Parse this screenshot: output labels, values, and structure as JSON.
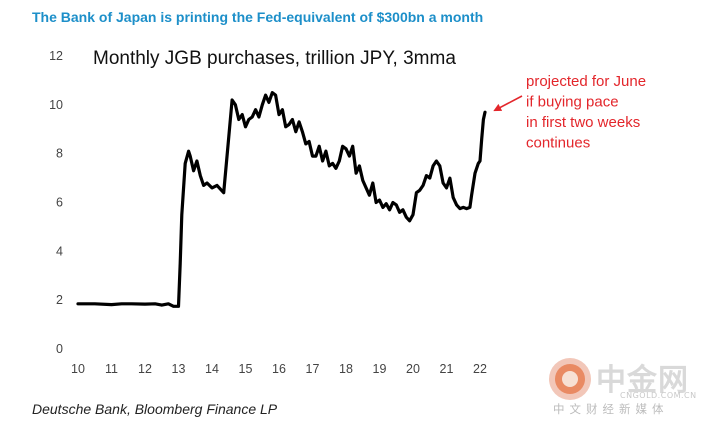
{
  "headline": "The Bank of Japan is printing the Fed-equivalent of $300bn a month",
  "source": "Deutsche Bank, Bloomberg Finance LP",
  "watermark": {
    "name": "中金网",
    "domain": "CNGOLD.COM.CN",
    "tagline": "中文财经新媒体"
  },
  "colors": {
    "headline": "#1d8fc9",
    "series": "#000000",
    "annotation": "#e3262b",
    "watermark": "#d9d9d9"
  },
  "chart_data": {
    "type": "line",
    "title": "Monthly JGB purchases, trillion JPY, 3mma",
    "xlabel": "",
    "ylabel": "",
    "xlim": [
      10,
      22.3
    ],
    "ylim": [
      0,
      12
    ],
    "xticks": [
      10,
      11,
      12,
      13,
      14,
      15,
      16,
      17,
      18,
      19,
      20,
      21,
      22
    ],
    "xtick_labels": [
      "10",
      "11",
      "12",
      "13",
      "14",
      "15",
      "16",
      "17",
      "18",
      "19",
      "20",
      "21",
      "22"
    ],
    "yticks": [
      0,
      2,
      4,
      6,
      8,
      10,
      12
    ],
    "ytick_labels": [
      "0",
      "2",
      "4",
      "6",
      "8",
      "10",
      "12"
    ],
    "grid": false,
    "legend": "none",
    "series": [
      {
        "x": [
          10.0,
          10.5,
          11.0,
          11.3,
          11.6,
          12.0,
          12.3,
          12.5,
          12.7,
          12.85,
          13.0,
          13.05,
          13.1,
          13.2,
          13.3,
          13.35,
          13.45,
          13.55,
          13.65,
          13.75,
          13.85,
          14.0,
          14.15,
          14.35,
          14.5,
          14.6,
          14.7,
          14.8,
          14.9,
          15.0,
          15.1,
          15.2,
          15.3,
          15.4,
          15.5,
          15.6,
          15.7,
          15.8,
          15.9,
          16.0,
          16.1,
          16.2,
          16.3,
          16.4,
          16.5,
          16.6,
          16.7,
          16.8,
          16.9,
          17.0,
          17.1,
          17.2,
          17.3,
          17.4,
          17.5,
          17.6,
          17.7,
          17.8,
          17.9,
          18.0,
          18.1,
          18.2,
          18.3,
          18.4,
          18.5,
          18.6,
          18.7,
          18.8,
          18.9,
          19.0,
          19.1,
          19.2,
          19.3,
          19.4,
          19.5,
          19.6,
          19.7,
          19.8,
          19.9,
          20.0,
          20.1,
          20.2,
          20.3,
          20.4,
          20.5,
          20.6,
          20.7,
          20.8,
          20.9,
          21.0,
          21.1,
          21.2,
          21.3,
          21.4,
          21.5,
          21.6,
          21.7,
          21.75,
          21.85,
          21.95,
          22.0,
          22.05,
          22.1,
          22.15
        ],
        "y": [
          1.85,
          1.85,
          1.82,
          1.85,
          1.85,
          1.84,
          1.85,
          1.8,
          1.85,
          1.75,
          1.75,
          3.5,
          5.5,
          7.6,
          8.1,
          7.9,
          7.3,
          7.7,
          7.1,
          6.7,
          6.8,
          6.6,
          6.7,
          6.4,
          8.7,
          10.2,
          10.0,
          9.4,
          9.6,
          9.1,
          9.4,
          9.5,
          9.8,
          9.5,
          10.0,
          10.4,
          10.1,
          10.5,
          10.4,
          9.6,
          9.8,
          9.1,
          9.2,
          9.4,
          8.9,
          9.3,
          8.9,
          8.4,
          8.5,
          7.9,
          7.9,
          8.3,
          7.7,
          8.1,
          7.5,
          7.6,
          7.4,
          7.7,
          8.3,
          8.2,
          7.9,
          8.3,
          7.2,
          7.5,
          6.9,
          6.6,
          6.3,
          6.8,
          6.0,
          6.1,
          5.8,
          5.95,
          5.7,
          6.0,
          5.9,
          5.6,
          5.7,
          5.4,
          5.25,
          5.5,
          6.4,
          6.5,
          6.7,
          7.1,
          7.0,
          7.5,
          7.7,
          7.5,
          6.8,
          6.6,
          7.0,
          6.2,
          5.9,
          5.75,
          5.8,
          5.75,
          5.8,
          6.3,
          7.2,
          7.6,
          7.7,
          8.6,
          9.4,
          9.7
        ],
        "color": "#000000"
      }
    ],
    "annotations": [
      {
        "lines": [
          "projected for June",
          "if buying pace",
          "in first two weeks",
          "continues"
        ],
        "arrow_to": [
          22.15,
          9.7
        ],
        "color": "#e3262b"
      }
    ]
  }
}
